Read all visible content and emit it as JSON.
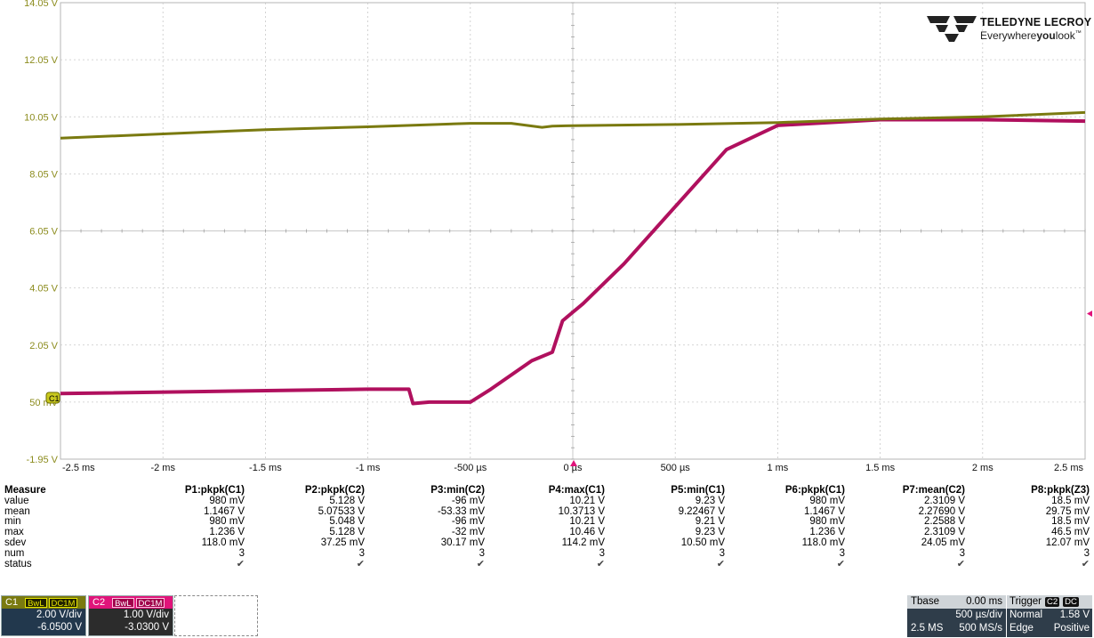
{
  "scope": {
    "y_labels": [
      "14.05 V",
      "12.05 V",
      "10.05 V",
      "8.05 V",
      "6.05 V",
      "4.05 V",
      "2.05 V",
      "50 mV",
      "-1.95 V"
    ],
    "x_labels": [
      "-2.5 ms",
      "-2 ms",
      "-1.5 ms",
      "-1 ms",
      "-500 µs",
      "0 µs",
      "500 µs",
      "1 ms",
      "1.5 ms",
      "2 ms",
      "2.5 ms"
    ],
    "c1_marker": "C1",
    "c1_color": "#7a7a10",
    "c2_color": "#b0105e"
  },
  "chart_data": {
    "type": "line",
    "xlabel": "",
    "ylabel": "",
    "xlim": [
      -2.5,
      2.5
    ],
    "ylim": [
      -1.95,
      14.05
    ],
    "grid": true,
    "series": [
      {
        "x": [
          -2.5,
          -2.0,
          -1.5,
          -1.0,
          -0.5,
          -0.3,
          -0.15,
          -0.1,
          0.0,
          0.5,
          1.0,
          1.5,
          2.0,
          2.5
        ],
        "values": [
          9.3,
          9.45,
          9.6,
          9.7,
          9.82,
          9.82,
          9.68,
          9.72,
          9.74,
          9.78,
          9.85,
          9.97,
          10.05,
          10.2
        ]
      },
      {
        "x": [
          -2.5,
          -1.0,
          -0.8,
          -0.78,
          -0.7,
          -0.5,
          -0.4,
          -0.2,
          -0.1,
          -0.05,
          0.0,
          0.05,
          0.25,
          0.5,
          0.75,
          1.0,
          1.5,
          2.0,
          2.5
        ],
        "values": [
          0.35,
          0.5,
          0.5,
          0.0,
          0.05,
          0.05,
          0.5,
          1.5,
          1.8,
          2.9,
          3.2,
          3.5,
          4.9,
          6.9,
          8.9,
          9.75,
          9.95,
          9.95,
          9.9
        ]
      }
    ]
  },
  "logo": {
    "brand": "TELEDYNE LECROY",
    "tagline_pre": "Everywhere",
    "tagline_bold": "you",
    "tagline_post": "look",
    "tm": "™"
  },
  "measure": {
    "title": "Measure",
    "headers": [
      "P1:pkpk(C1)",
      "P2:pkpk(C2)",
      "P3:min(C2)",
      "P4:max(C1)",
      "P5:min(C1)",
      "P6:pkpk(C1)",
      "P7:mean(C2)",
      "P8:pkpk(Z3)"
    ],
    "rows": [
      {
        "label": "value",
        "cells": [
          "980 mV",
          "5.128 V",
          "-96 mV",
          "10.21 V",
          "9.23 V",
          "980 mV",
          "2.3109 V",
          "18.5 mV"
        ]
      },
      {
        "label": "mean",
        "cells": [
          "1.1467 V",
          "5.07533 V",
          "-53.33 mV",
          "10.3713 V",
          "9.22467 V",
          "1.1467 V",
          "2.27690 V",
          "29.75 mV"
        ]
      },
      {
        "label": "min",
        "cells": [
          "980 mV",
          "5.048 V",
          "-96 mV",
          "10.21 V",
          "9.21 V",
          "980 mV",
          "2.2588 V",
          "18.5 mV"
        ]
      },
      {
        "label": "max",
        "cells": [
          "1.236 V",
          "5.128 V",
          "-32 mV",
          "10.46 V",
          "9.23 V",
          "1.236 V",
          "2.3109 V",
          "46.5 mV"
        ]
      },
      {
        "label": "sdev",
        "cells": [
          "118.0 mV",
          "37.25 mV",
          "30.17 mV",
          "114.2 mV",
          "10.50 mV",
          "118.0 mV",
          "24.05 mV",
          "12.07 mV"
        ]
      },
      {
        "label": "num",
        "cells": [
          "3",
          "3",
          "3",
          "3",
          "3",
          "3",
          "3",
          "3"
        ]
      }
    ],
    "status_label": "status",
    "status_mark": "✔"
  },
  "c1": {
    "name": "C1",
    "bw": "BwL",
    "coupling": "DC1M",
    "vdiv": "2.00 V/div",
    "offset": "-6.0500 V"
  },
  "c2": {
    "name": "C2",
    "bw": "BwL",
    "coupling": "DC1M",
    "vdiv": "1.00 V/div",
    "offset": "-3.0300 V"
  },
  "tbase": {
    "label": "Tbase",
    "delay": "0.00 ms",
    "tdiv": "500 µs/div",
    "samples": "2.5 MS",
    "rate": "500 MS/s"
  },
  "trigger": {
    "label": "Trigger",
    "src": "C2",
    "coupling": "DC",
    "mode": "Normal",
    "level": "1.58 V",
    "type": "Edge",
    "slope": "Positive"
  }
}
